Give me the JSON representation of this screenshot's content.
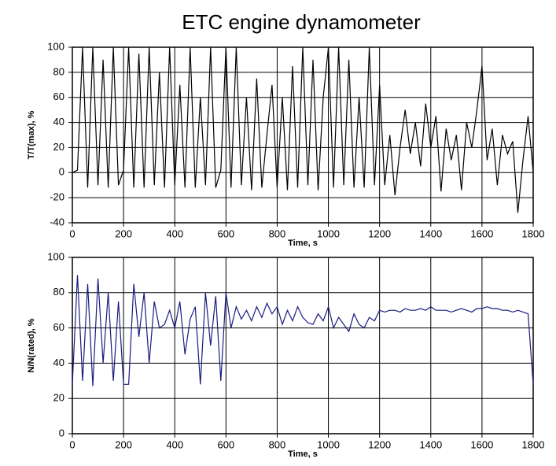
{
  "title": "ETC engine dynamometer",
  "chart_data": [
    {
      "type": "line",
      "xlabel": "Time, s",
      "ylabel": "T/T(max), %",
      "x": [
        0,
        20,
        40,
        60,
        80,
        100,
        120,
        140,
        160,
        180,
        200,
        220,
        240,
        260,
        280,
        300,
        320,
        340,
        360,
        380,
        400,
        420,
        440,
        460,
        480,
        500,
        520,
        540,
        560,
        580,
        600,
        620,
        640,
        660,
        680,
        700,
        720,
        740,
        760,
        780,
        800,
        820,
        840,
        860,
        880,
        900,
        920,
        940,
        960,
        980,
        1000,
        1020,
        1040,
        1060,
        1080,
        1100,
        1120,
        1140,
        1160,
        1180,
        1200,
        1220,
        1240,
        1260,
        1280,
        1300,
        1320,
        1340,
        1360,
        1380,
        1400,
        1420,
        1440,
        1460,
        1480,
        1500,
        1520,
        1540,
        1560,
        1580,
        1600,
        1620,
        1640,
        1660,
        1680,
        1700,
        1720,
        1740,
        1760,
        1780,
        1800
      ],
      "series": [
        {
          "name": "T/T(max)",
          "color": "#000000",
          "values": [
            0,
            2,
            100,
            -12,
            100,
            -10,
            90,
            -12,
            100,
            -10,
            2,
            100,
            -12,
            95,
            -12,
            100,
            -10,
            80,
            -12,
            100,
            -10,
            70,
            -12,
            100,
            -12,
            60,
            -10,
            100,
            -12,
            2,
            100,
            -12,
            100,
            -10,
            60,
            -14,
            75,
            -12,
            30,
            70,
            -12,
            60,
            -14,
            85,
            -12,
            100,
            -10,
            90,
            -14,
            60,
            100,
            -12,
            100,
            -10,
            90,
            -12,
            60,
            -12,
            100,
            -10,
            70,
            -10,
            30,
            -18,
            20,
            50,
            15,
            40,
            5,
            55,
            20,
            45,
            -15,
            35,
            10,
            30,
            -14,
            40,
            20,
            50,
            85,
            10,
            35,
            -10,
            30,
            15,
            25,
            -32,
            10,
            45,
            0
          ]
        }
      ],
      "xlim": [
        0,
        1800
      ],
      "xticks": [
        0,
        200,
        400,
        600,
        800,
        1000,
        1200,
        1400,
        1600,
        1800
      ],
      "ylim": [
        -40,
        100
      ],
      "yticks": [
        -40,
        -20,
        0,
        20,
        40,
        60,
        80,
        100
      ],
      "grid": true
    },
    {
      "type": "line",
      "xlabel": "Time, s",
      "ylabel": "N/N(rated), %",
      "x": [
        0,
        20,
        40,
        60,
        80,
        100,
        120,
        140,
        160,
        180,
        200,
        220,
        240,
        260,
        280,
        300,
        320,
        340,
        360,
        380,
        400,
        420,
        440,
        460,
        480,
        500,
        520,
        540,
        560,
        580,
        600,
        620,
        640,
        660,
        680,
        700,
        720,
        740,
        760,
        780,
        800,
        820,
        840,
        860,
        880,
        900,
        920,
        940,
        960,
        980,
        1000,
        1020,
        1040,
        1060,
        1080,
        1100,
        1120,
        1140,
        1160,
        1180,
        1200,
        1220,
        1240,
        1260,
        1280,
        1300,
        1320,
        1340,
        1360,
        1380,
        1400,
        1420,
        1440,
        1460,
        1480,
        1500,
        1520,
        1540,
        1560,
        1580,
        1600,
        1620,
        1640,
        1660,
        1680,
        1700,
        1720,
        1740,
        1760,
        1780,
        1800
      ],
      "series": [
        {
          "name": "N/N(rated)",
          "color": "#1a1a80",
          "values": [
            28,
            90,
            30,
            85,
            27,
            88,
            40,
            80,
            30,
            75,
            28,
            28,
            85,
            55,
            80,
            40,
            75,
            60,
            62,
            70,
            60,
            75,
            45,
            65,
            72,
            28,
            80,
            50,
            78,
            30,
            80,
            60,
            72,
            65,
            70,
            64,
            72,
            66,
            74,
            68,
            72,
            62,
            70,
            64,
            72,
            66,
            63,
            62,
            68,
            64,
            72,
            60,
            66,
            62,
            58,
            68,
            62,
            60,
            66,
            64,
            70,
            69,
            70,
            70,
            69,
            71,
            70,
            70,
            71,
            70,
            72,
            70,
            70,
            70,
            69,
            70,
            71,
            70,
            69,
            71,
            71,
            72,
            71,
            71,
            70,
            70,
            69,
            70,
            69,
            68,
            28
          ]
        }
      ],
      "xlim": [
        0,
        1800
      ],
      "xticks": [
        0,
        200,
        400,
        600,
        800,
        1000,
        1200,
        1400,
        1600,
        1800
      ],
      "ylim": [
        0,
        100
      ],
      "yticks": [
        0,
        20,
        40,
        60,
        80,
        100
      ],
      "grid": true
    }
  ]
}
